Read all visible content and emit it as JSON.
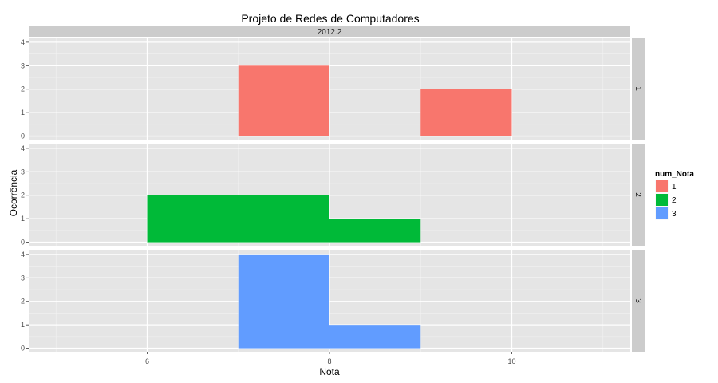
{
  "chart_data": {
    "type": "bar",
    "title": "Projeto de Redes de Computadores",
    "strip_top": "2012.2",
    "xlabel": "Nota",
    "ylabel": "Ocorrência",
    "xlim": [
      4.7,
      11.3
    ],
    "ylim": [
      -0.15,
      4.2
    ],
    "x_ticks": [
      6,
      8,
      10
    ],
    "y_ticks": [
      0,
      1,
      2,
      3,
      4
    ],
    "bin_width": 1,
    "grid": true,
    "legend": {
      "title": "num_Nota",
      "placement": "right",
      "entries": [
        {
          "label": "1",
          "color": "#F8766D"
        },
        {
          "label": "2",
          "color": "#00BA38"
        },
        {
          "label": "3",
          "color": "#619CFF"
        }
      ]
    },
    "panels": [
      {
        "label": "1",
        "color": "#F8766D",
        "bars": [
          {
            "x0": 7,
            "x1": 8,
            "count": 3
          },
          {
            "x0": 9,
            "x1": 10,
            "count": 2
          }
        ]
      },
      {
        "label": "2",
        "color": "#00BA38",
        "bars": [
          {
            "x0": 6,
            "x1": 8,
            "count": 2
          },
          {
            "x0": 8,
            "x1": 9,
            "count": 1
          }
        ]
      },
      {
        "label": "3",
        "color": "#619CFF",
        "bars": [
          {
            "x0": 7,
            "x1": 8,
            "count": 4
          },
          {
            "x0": 8,
            "x1": 9,
            "count": 1
          }
        ]
      }
    ]
  }
}
